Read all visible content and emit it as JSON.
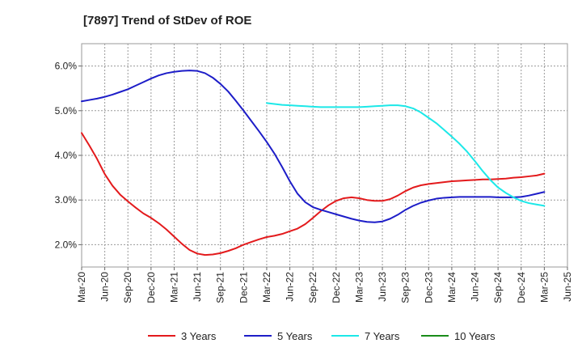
{
  "chart_data": {
    "type": "line",
    "title": "[7897]  Trend of StDev of ROE",
    "xlabel": "",
    "ylabel": "",
    "x_ticks": [
      "Mar-20",
      "Jun-20",
      "Sep-20",
      "Dec-20",
      "Mar-21",
      "Jun-21",
      "Sep-21",
      "Dec-21",
      "Mar-22",
      "Jun-22",
      "Sep-22",
      "Dec-22",
      "Mar-23",
      "Jun-23",
      "Sep-23",
      "Dec-23",
      "Mar-24",
      "Jun-24",
      "Sep-24",
      "Dec-24",
      "Mar-25",
      "Jun-25"
    ],
    "y_ticks": [
      2.0,
      3.0,
      4.0,
      5.0,
      6.0
    ],
    "y_tick_labels": [
      "2.0%",
      "3.0%",
      "4.0%",
      "5.0%",
      "6.0%"
    ],
    "ylim": [
      1.5,
      6.5
    ],
    "grid": true,
    "legend_position": "bottom",
    "series": [
      {
        "name": "3 Years",
        "color": "#e31a1c",
        "x": [
          "Mar-20",
          "Apr-20",
          "May-20",
          "Jun-20",
          "Jul-20",
          "Aug-20",
          "Sep-20",
          "Oct-20",
          "Nov-20",
          "Dec-20",
          "Jan-21",
          "Feb-21",
          "Mar-21",
          "Apr-21",
          "May-21",
          "Jun-21",
          "Jul-21",
          "Aug-21",
          "Sep-21",
          "Oct-21",
          "Nov-21",
          "Dec-21",
          "Jan-22",
          "Feb-22",
          "Mar-22",
          "Apr-22",
          "May-22",
          "Jun-22",
          "Jul-22",
          "Aug-22",
          "Sep-22",
          "Oct-22",
          "Nov-22",
          "Dec-22",
          "Jan-23",
          "Feb-23",
          "Mar-23",
          "Apr-23",
          "May-23",
          "Jun-23",
          "Jul-23",
          "Aug-23",
          "Sep-23",
          "Oct-23",
          "Nov-23",
          "Dec-23",
          "Jan-24",
          "Feb-24",
          "Mar-24",
          "Apr-24",
          "May-24",
          "Jun-24",
          "Jul-24",
          "Aug-24",
          "Sep-24",
          "Oct-24",
          "Nov-24",
          "Dec-24",
          "Jan-25",
          "Feb-25",
          "Mar-25"
        ],
        "values": [
          4.5,
          4.22,
          3.92,
          3.58,
          3.32,
          3.12,
          2.97,
          2.83,
          2.7,
          2.6,
          2.48,
          2.34,
          2.18,
          2.02,
          1.88,
          1.8,
          1.77,
          1.78,
          1.81,
          1.86,
          1.92,
          2.0,
          2.06,
          2.12,
          2.17,
          2.2,
          2.24,
          2.3,
          2.36,
          2.46,
          2.6,
          2.75,
          2.88,
          2.98,
          3.04,
          3.06,
          3.04,
          3.0,
          2.98,
          2.98,
          3.02,
          3.1,
          3.2,
          3.28,
          3.33,
          3.36,
          3.38,
          3.4,
          3.42,
          3.43,
          3.44,
          3.45,
          3.46,
          3.46,
          3.47,
          3.48,
          3.5,
          3.51,
          3.53,
          3.55,
          3.59
        ]
      },
      {
        "name": "5 Years",
        "color": "#1d1dc8",
        "x": [
          "Mar-20",
          "Apr-20",
          "May-20",
          "Jun-20",
          "Jul-20",
          "Aug-20",
          "Sep-20",
          "Oct-20",
          "Nov-20",
          "Dec-20",
          "Jan-21",
          "Feb-21",
          "Mar-21",
          "Apr-21",
          "May-21",
          "Jun-21",
          "Jul-21",
          "Aug-21",
          "Sep-21",
          "Oct-21",
          "Nov-21",
          "Dec-21",
          "Jan-22",
          "Feb-22",
          "Mar-22",
          "Apr-22",
          "May-22",
          "Jun-22",
          "Jul-22",
          "Aug-22",
          "Sep-22",
          "Oct-22",
          "Nov-22",
          "Dec-22",
          "Jan-23",
          "Feb-23",
          "Mar-23",
          "Apr-23",
          "May-23",
          "Jun-23",
          "Jul-23",
          "Aug-23",
          "Sep-23",
          "Oct-23",
          "Nov-23",
          "Dec-23",
          "Jan-24",
          "Feb-24",
          "Mar-24",
          "Apr-24",
          "May-24",
          "Jun-24",
          "Jul-24",
          "Aug-24",
          "Sep-24",
          "Oct-24",
          "Nov-24",
          "Dec-24",
          "Jan-25",
          "Feb-25",
          "Mar-25"
        ],
        "values": [
          5.21,
          5.24,
          5.27,
          5.31,
          5.36,
          5.42,
          5.48,
          5.56,
          5.64,
          5.72,
          5.79,
          5.84,
          5.87,
          5.89,
          5.9,
          5.89,
          5.84,
          5.74,
          5.6,
          5.43,
          5.22,
          5.0,
          4.77,
          4.54,
          4.3,
          4.04,
          3.74,
          3.42,
          3.14,
          2.95,
          2.84,
          2.78,
          2.73,
          2.68,
          2.63,
          2.58,
          2.54,
          2.51,
          2.5,
          2.52,
          2.58,
          2.67,
          2.78,
          2.87,
          2.94,
          2.99,
          3.03,
          3.05,
          3.06,
          3.07,
          3.07,
          3.07,
          3.07,
          3.07,
          3.06,
          3.06,
          3.06,
          3.07,
          3.1,
          3.14,
          3.18
        ]
      },
      {
        "name": "7 Years",
        "color": "#1ce8e8",
        "x": [
          "Mar-22",
          "Apr-22",
          "May-22",
          "Jun-22",
          "Jul-22",
          "Aug-22",
          "Sep-22",
          "Oct-22",
          "Nov-22",
          "Dec-22",
          "Jan-23",
          "Feb-23",
          "Mar-23",
          "Apr-23",
          "May-23",
          "Jun-23",
          "Jul-23",
          "Aug-23",
          "Sep-23",
          "Oct-23",
          "Nov-23",
          "Dec-23",
          "Jan-24",
          "Feb-24",
          "Mar-24",
          "Apr-24",
          "May-24",
          "Jun-24",
          "Jul-24",
          "Aug-24",
          "Sep-24",
          "Oct-24",
          "Nov-24",
          "Dec-24",
          "Jan-25",
          "Feb-25",
          "Mar-25"
        ],
        "values": [
          5.17,
          5.15,
          5.13,
          5.12,
          5.11,
          5.1,
          5.09,
          5.08,
          5.08,
          5.08,
          5.08,
          5.08,
          5.08,
          5.09,
          5.1,
          5.11,
          5.12,
          5.12,
          5.1,
          5.05,
          4.96,
          4.84,
          4.72,
          4.57,
          4.42,
          4.26,
          4.08,
          3.87,
          3.65,
          3.45,
          3.28,
          3.16,
          3.06,
          2.98,
          2.93,
          2.9,
          2.87
        ]
      },
      {
        "name": "10 Years",
        "color": "#1a8c1a",
        "x": [],
        "values": []
      }
    ]
  }
}
